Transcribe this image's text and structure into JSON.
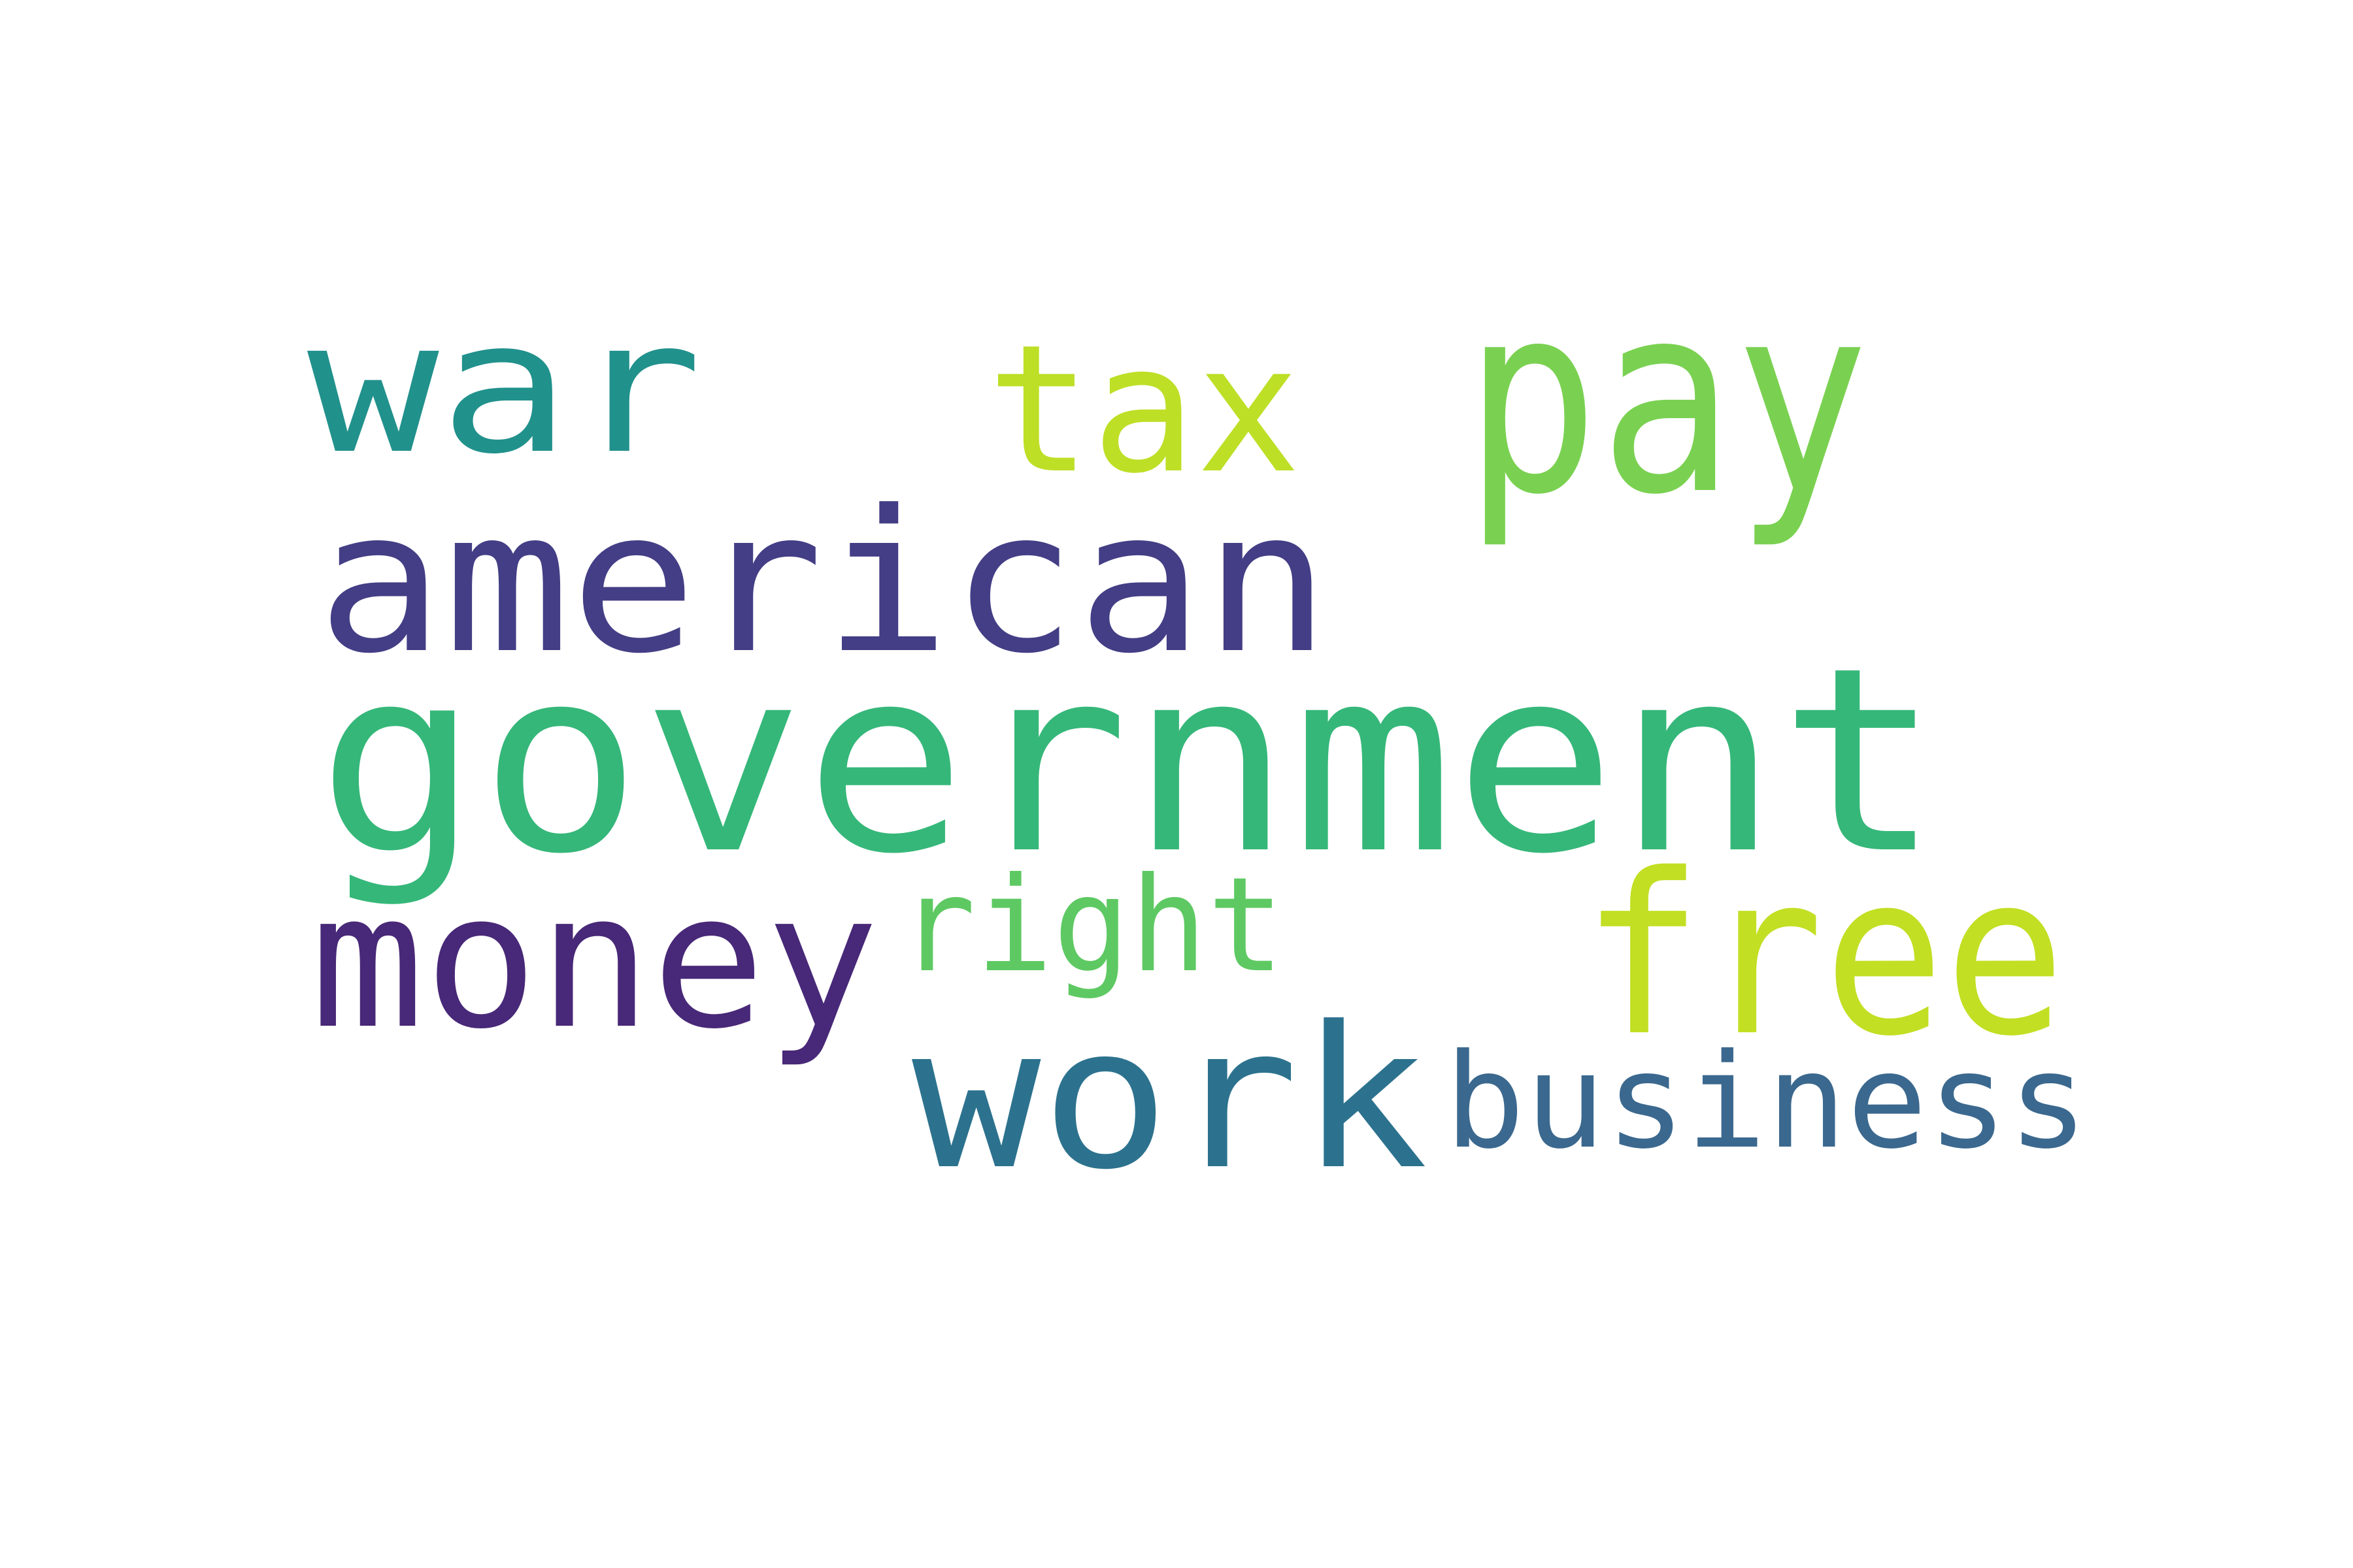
{
  "words": [
    {
      "text": "war",
      "color": "#21918c"
    },
    {
      "text": "tax",
      "color": "#bddf26"
    },
    {
      "text": "pay",
      "color": "#7ad151"
    },
    {
      "text": "american",
      "color": "#433e85"
    },
    {
      "text": "government",
      "color": "#35b779"
    },
    {
      "text": "money",
      "color": "#482878"
    },
    {
      "text": "right",
      "color": "#5ec962"
    },
    {
      "text": "free",
      "color": "#c2df23"
    },
    {
      "text": "work",
      "color": "#2c728e"
    },
    {
      "text": "business",
      "color": "#3b688e"
    }
  ]
}
